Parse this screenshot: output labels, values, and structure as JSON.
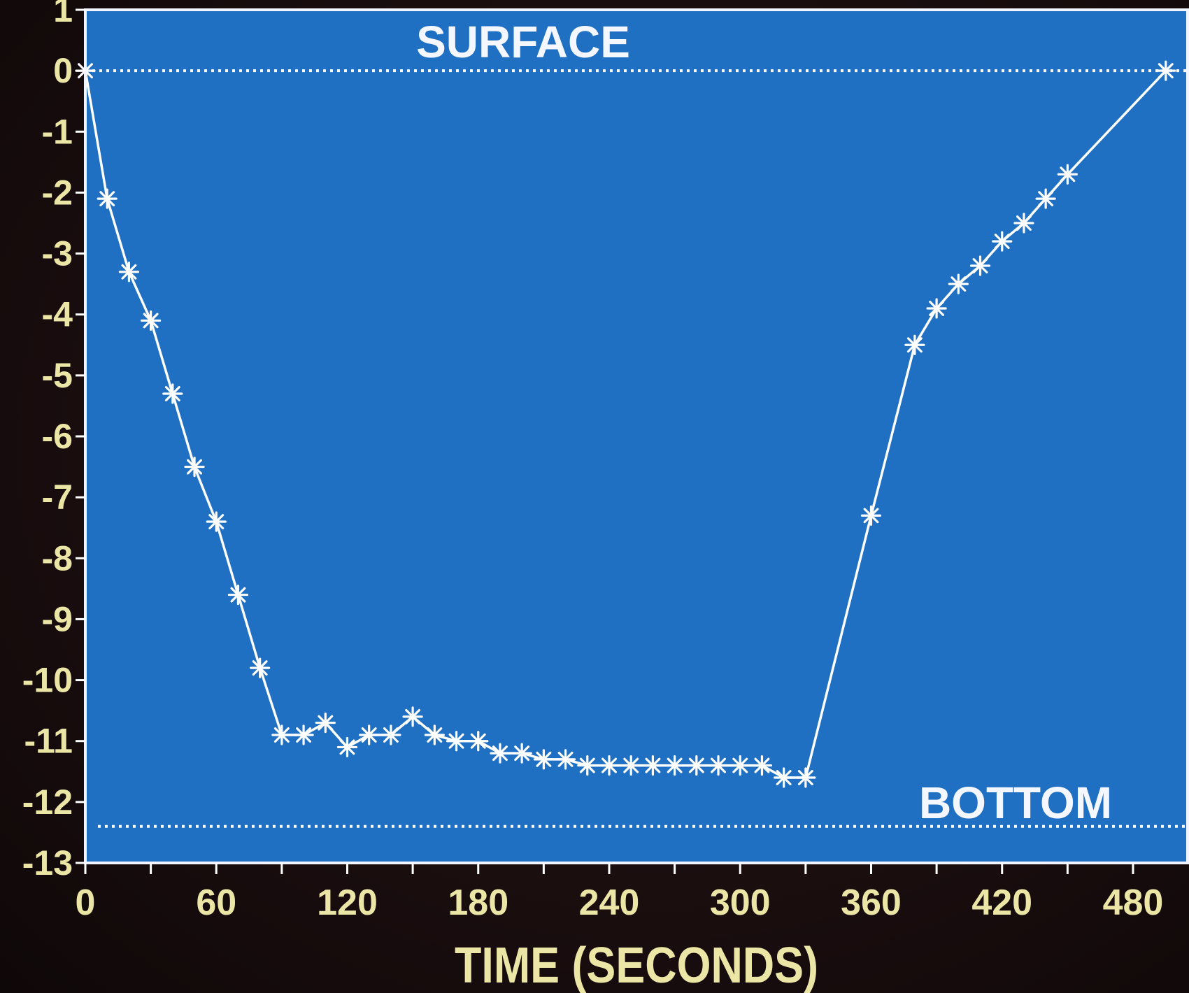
{
  "chart_data": {
    "type": "line",
    "title": "",
    "xlabel": "TIME (SECONDS)",
    "ylabel": "",
    "xlim": [
      0,
      505
    ],
    "ylim": [
      -13,
      1
    ],
    "x_ticks": [
      0,
      60,
      120,
      180,
      240,
      300,
      360,
      420,
      480
    ],
    "y_ticks": [
      1,
      0,
      -1,
      -2,
      -3,
      -4,
      -5,
      -6,
      -7,
      -8,
      -9,
      -10,
      -11,
      -12,
      -13
    ],
    "grid": false,
    "legend": "none",
    "colors": {
      "plot_background": "#1f6fc2",
      "line": "#ffffff",
      "tick_labels": "#ece6a6",
      "annotations": "#f4f7ff"
    },
    "reference_lines": [
      {
        "label": "SURFACE",
        "y": 0
      },
      {
        "label": "BOTTOM",
        "y": -12.4
      }
    ],
    "series": [
      {
        "x": [
          0,
          10,
          20,
          30,
          40,
          50,
          60,
          70,
          80,
          90,
          100,
          110,
          120,
          130,
          140,
          150,
          160,
          170,
          180,
          190,
          200,
          210,
          220,
          230,
          240,
          250,
          260,
          270,
          280,
          290,
          300,
          310,
          320,
          330,
          360,
          380,
          390,
          400,
          410,
          420,
          430,
          440,
          450,
          495
        ],
        "y": [
          0,
          -2.1,
          -3.3,
          -4.1,
          -5.3,
          -6.5,
          -7.4,
          -8.6,
          -9.8,
          -10.9,
          -10.9,
          -10.7,
          -11.1,
          -10.9,
          -10.9,
          -10.6,
          -10.9,
          -11.0,
          -11.0,
          -11.2,
          -11.2,
          -11.3,
          -11.3,
          -11.4,
          -11.4,
          -11.4,
          -11.4,
          -11.4,
          -11.4,
          -11.4,
          -11.4,
          -11.4,
          -11.6,
          -11.6,
          -7.3,
          -4.5,
          -3.9,
          -3.5,
          -3.2,
          -2.8,
          -2.5,
          -2.1,
          -1.7,
          0
        ]
      }
    ]
  }
}
